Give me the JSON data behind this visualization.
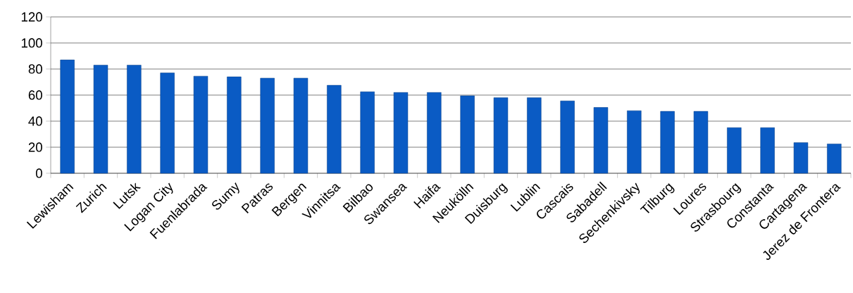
{
  "chart_data": {
    "type": "bar",
    "categories": [
      "Lewisham",
      "Zurich",
      "Lutsk",
      "Logan City",
      "Fuenlabrada",
      "Sumy",
      "Patras",
      "Bergen",
      "Vinnitsa",
      "Bilbao",
      "Swansea",
      "Haifa",
      "Neukölln",
      "Duisburg",
      "Lublin",
      "Cascais",
      "Sabadell",
      "Sechenkivsky",
      "Tilburg",
      "Loures",
      "Strasbourg",
      "Constanta",
      "Cartagena",
      "Jerez de Frontera"
    ],
    "values": [
      87,
      83,
      83,
      77,
      74.5,
      74,
      73,
      73,
      67.5,
      62.5,
      62,
      62,
      59.5,
      58,
      58,
      55.5,
      50.5,
      48,
      47.5,
      47.5,
      35,
      35,
      23.5,
      22.5
    ],
    "color": "#0a5bc4",
    "ylim": [
      0,
      120
    ],
    "yticks": [
      0,
      20,
      40,
      60,
      80,
      100,
      120
    ],
    "grid": "y"
  }
}
